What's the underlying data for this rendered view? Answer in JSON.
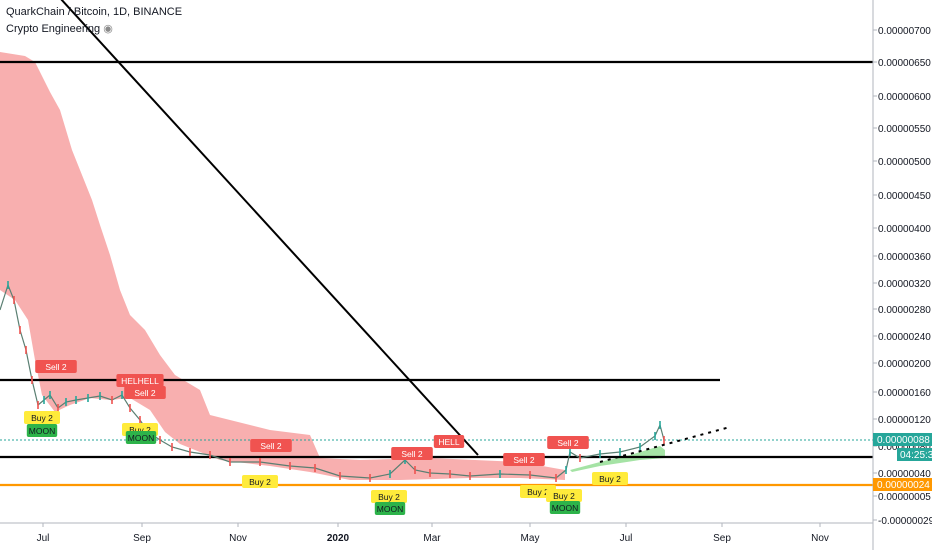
{
  "header": {
    "title": "QuarkChain / Bitcoin, 1D, BINANCE",
    "indicator": "Crypto Engineering"
  },
  "colors": {
    "cloud_red": "#f7a1a1",
    "cloud_green": "#8fdc8f",
    "candle_up": "#26a69a",
    "candle_down": "#ef5350",
    "sell_tag": "#f05350",
    "buy_tag": "#ffeb3b",
    "moon_tag": "#2db34a",
    "orange_line": "#ff9800",
    "price_badge": "#26a69a"
  },
  "chart_data": {
    "type": "line",
    "y_axis": {
      "ticks": [
        "0.00000700",
        "0.00000650",
        "0.00000600",
        "0.00000550",
        "0.00000500",
        "0.00000450",
        "0.00000400",
        "0.00000360",
        "0.00000320",
        "0.00000280",
        "0.00000240",
        "0.00000200",
        "0.00000160",
        "0.00000120",
        "0.00000080",
        "0.00000040",
        "0.00000005",
        "-0.00000029"
      ]
    },
    "x_axis": {
      "ticks": [
        "Jul",
        "Sep",
        "Nov",
        "2020",
        "Mar",
        "May",
        "Jul",
        "Sep",
        "Nov"
      ],
      "bold_tick": "2020"
    },
    "series": [
      {
        "x": [
          "2019-05-30",
          "2019-06-05",
          "2019-06-15",
          "2019-06-25",
          "2019-07-05",
          "2019-07-15",
          "2019-07-25",
          "2019-08-05",
          "2019-08-15",
          "2019-08-25",
          "2019-09-05",
          "2019-09-15",
          "2019-09-25",
          "2019-10-05",
          "2019-10-20",
          "2019-11-05",
          "2019-11-20",
          "2019-12-05",
          "2019-12-20",
          "2020-01-05",
          "2020-01-20",
          "2020-02-05",
          "2020-02-15",
          "2020-02-25",
          "2020-03-05",
          "2020-03-15",
          "2020-03-25",
          "2020-04-05",
          "2020-04-20",
          "2020-05-05",
          "2020-05-15",
          "2020-05-20",
          "2020-06-01",
          "2020-06-10",
          "2020-06-20",
          "2020-07-01",
          "2020-07-10",
          "2020-07-20",
          "2020-07-25"
        ],
        "values": [
          3e-06,
          3.3e-06,
          2.8e-06,
          2.4e-06,
          1.3e-06,
          1.4e-06,
          1.6e-06,
          1.6e-06,
          1.7e-06,
          1.5e-06,
          1.3e-06,
          9e-07,
          8e-07,
          7e-07,
          6e-07,
          5e-07,
          5e-07,
          4e-07,
          3.7e-07,
          3e-07,
          2.5e-07,
          2.8e-07,
          4e-07,
          3e-07,
          3.5e-07,
          3e-07,
          3.2e-07,
          3e-07,
          3e-07,
          3e-07,
          3e-07,
          6e-07,
          5e-07,
          7e-07,
          7e-07,
          8e-07,
          8e-07,
          1e-06,
          9e-07
        ]
      }
    ],
    "horizontal_levels": [
      6.5e-06,
      1.75e-06,
      6e-07,
      2.4e-07
    ],
    "current_price": "0.00000088",
    "countdown": "04:25:32",
    "orange_level_label": "0.00000024",
    "signal_tags": [
      {
        "label": "Sell 2",
        "kind": "sell"
      },
      {
        "label": "HELHELL",
        "kind": "sell"
      },
      {
        "label": "Sell 2",
        "kind": "sell"
      },
      {
        "label": "Sell 2",
        "kind": "sell"
      },
      {
        "label": "Sell 2",
        "kind": "sell"
      },
      {
        "label": "HELL",
        "kind": "sell"
      },
      {
        "label": "Sell 2",
        "kind": "sell"
      },
      {
        "label": "Sell 2",
        "kind": "sell"
      },
      {
        "label": "Buy 2",
        "kind": "buy"
      },
      {
        "label": "Buy 2",
        "kind": "buy"
      },
      {
        "label": "Buy 2",
        "kind": "buy"
      },
      {
        "label": "Buy 2",
        "kind": "buy"
      },
      {
        "label": "Buy 2",
        "kind": "buy"
      },
      {
        "label": "Buy 2",
        "kind": "buy"
      },
      {
        "label": "Buy 2",
        "kind": "buy"
      },
      {
        "label": "MOON",
        "kind": "moon"
      },
      {
        "label": "MOON",
        "kind": "moon"
      },
      {
        "label": "MOON",
        "kind": "moon"
      },
      {
        "label": "MOON",
        "kind": "moon"
      }
    ]
  }
}
